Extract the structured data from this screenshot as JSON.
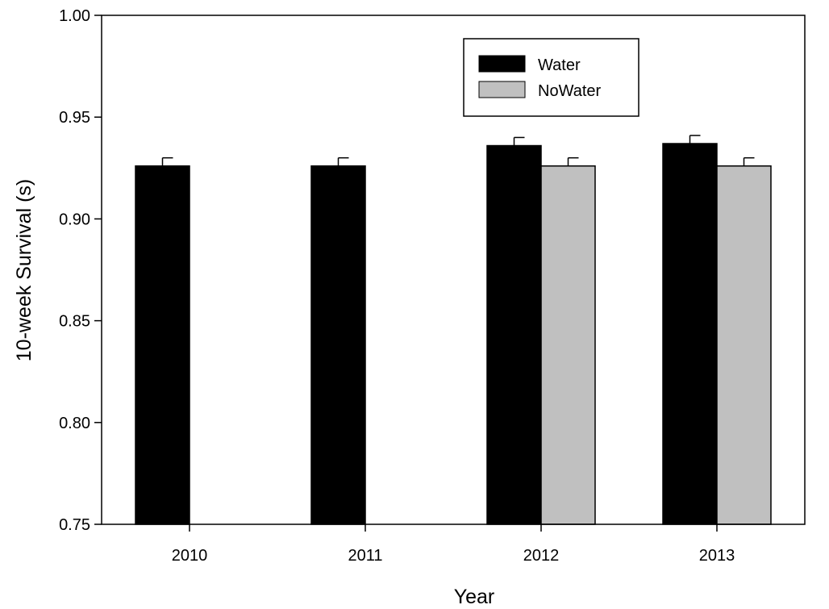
{
  "chart_data": {
    "type": "bar",
    "xlabel": "Year",
    "ylabel": "10-week Survival (s)",
    "categories": [
      "2010",
      "2011",
      "2012",
      "2013"
    ],
    "ylim": [
      0.75,
      1.0
    ],
    "yticks": [
      "0.75",
      "0.80",
      "0.85",
      "0.90",
      "0.95",
      "1.00"
    ],
    "legend_position": "top-right",
    "series": [
      {
        "name": "Water",
        "color": "#000000",
        "values": [
          0.926,
          0.926,
          0.936,
          0.937
        ],
        "errors": [
          0.004,
          0.004,
          0.004,
          0.004
        ]
      },
      {
        "name": "NoWater",
        "color": "#c0c0c0",
        "values": [
          null,
          null,
          0.926,
          0.926
        ],
        "errors": [
          null,
          null,
          0.004,
          0.004
        ]
      }
    ]
  }
}
